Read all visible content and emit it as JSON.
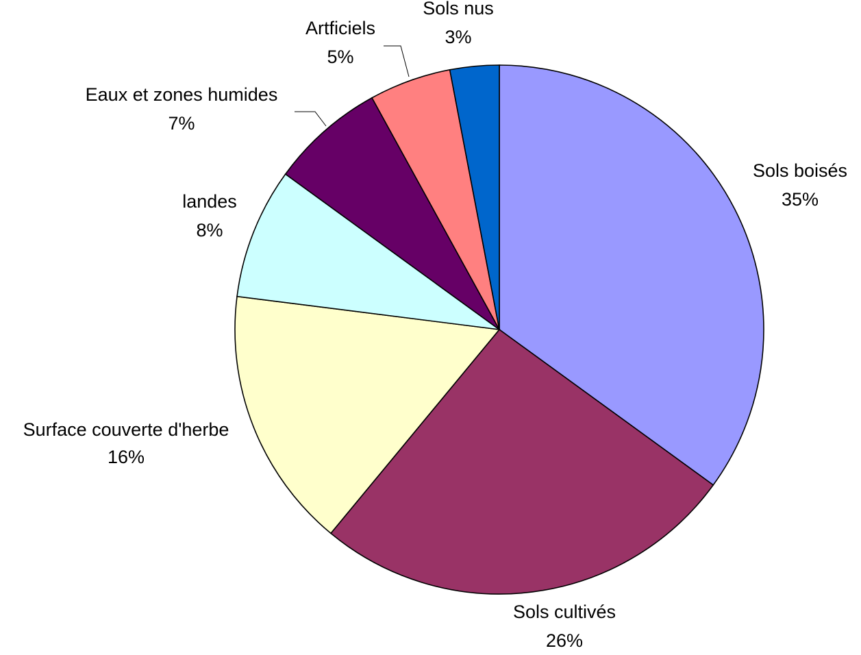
{
  "chart_data": {
    "type": "pie",
    "title": "",
    "start_angle": "12 o'clock",
    "direction": "clockwise",
    "slices": [
      {
        "label": "Sols boisés",
        "value": 35,
        "value_label": "35%",
        "color": "#9999FF"
      },
      {
        "label": "Sols cultivés",
        "value": 26,
        "value_label": "26%",
        "color": "#993366"
      },
      {
        "label": "Surface couverte d'herbe",
        "value": 16,
        "value_label": "16%",
        "color": "#FFFFCC"
      },
      {
        "label": "landes",
        "value": 8,
        "value_label": "8%",
        "color": "#CCFFFF"
      },
      {
        "label": "Eaux et zones humides",
        "value": 7,
        "value_label": "7%",
        "color": "#660066"
      },
      {
        "label": "Artficiels",
        "value": 5,
        "value_label": "5%",
        "color": "#FF8080"
      },
      {
        "label": "Sols nus",
        "value": 3,
        "value_label": "3%",
        "color": "#0066CC"
      }
    ]
  }
}
